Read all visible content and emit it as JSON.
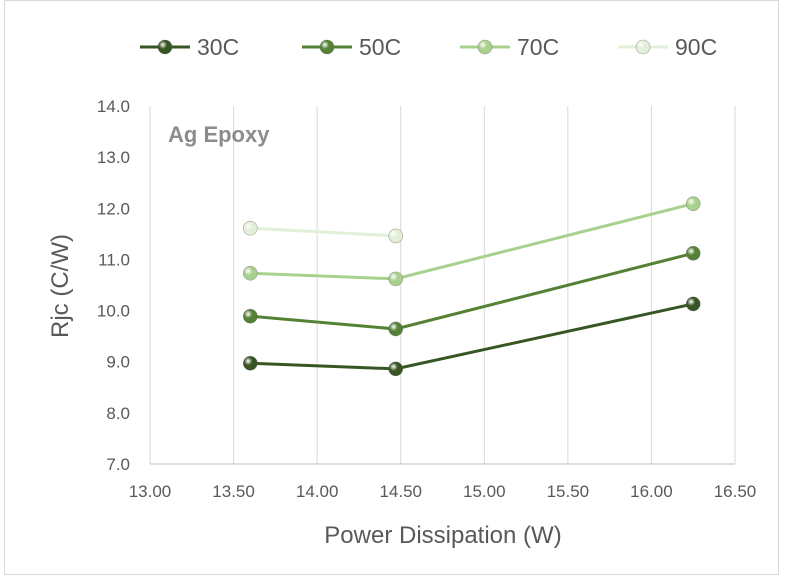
{
  "chart_data": {
    "type": "line",
    "annotation": "Ag Epoxy",
    "xlabel": "Power Dissipation (W)",
    "ylabel": "Rjc (C/W)",
    "xlim": [
      13.0,
      16.5
    ],
    "ylim": [
      7.0,
      14.0
    ],
    "xticks": [
      "13.00",
      "13.50",
      "14.00",
      "14.50",
      "15.00",
      "15.50",
      "16.00",
      "16.50"
    ],
    "yticks": [
      "7.0",
      "8.0",
      "9.0",
      "10.0",
      "11.0",
      "12.0",
      "13.0",
      "14.0"
    ],
    "grid": "vertical",
    "legend_position": "top",
    "series": [
      {
        "name": "30C",
        "color": "#375623",
        "x": [
          13.6,
          14.47,
          16.25
        ],
        "y": [
          8.97,
          8.86,
          10.13
        ]
      },
      {
        "name": "50C",
        "color": "#548235",
        "x": [
          13.6,
          14.47,
          16.25
        ],
        "y": [
          9.89,
          9.64,
          11.12
        ]
      },
      {
        "name": "70C",
        "color": "#a9d18e",
        "x": [
          13.6,
          14.47,
          16.25
        ],
        "y": [
          10.73,
          10.62,
          12.09
        ]
      },
      {
        "name": "90C",
        "color": "#e2efd9",
        "x": [
          13.6,
          14.47
        ],
        "y": [
          11.61,
          11.46
        ]
      }
    ]
  }
}
